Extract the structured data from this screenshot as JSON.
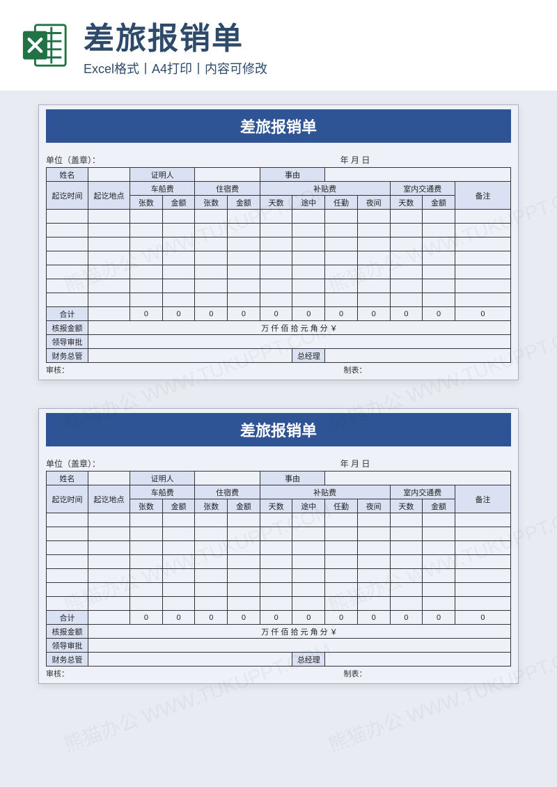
{
  "header": {
    "title": "差旅报销单",
    "subtitle": "Excel格式丨A4打印丨内容可修改"
  },
  "colors": {
    "page_bg": "#e8ecf2",
    "header_bg": "#ffffff",
    "sheet_bg": "#eef1f8",
    "title_bar_bg": "#2f5496",
    "title_bar_fg": "#ffffff",
    "th_bg": "#d9e1f2",
    "border": "#333333",
    "title_text": "#2d4a6b",
    "excel_green": "#217346"
  },
  "form": {
    "title": "差旅报销单",
    "unit_label": "单位（盖章）：",
    "date_label": "年   月    日",
    "row1": {
      "name": "姓名",
      "witness": "证明人",
      "reason": "事由"
    },
    "group_row": {
      "time": "起讫时间",
      "place": "起讫地点",
      "fare": "车船费",
      "lodging": "住宿费",
      "allowance": "补贴费",
      "local": "室内交通费",
      "remark": "备注"
    },
    "sub_cols": {
      "count": "张数",
      "amount": "金额",
      "days": "天数",
      "途中": "途中",
      "任勤": "任勤",
      "夜间": "夜间"
    },
    "blank_rows": 7,
    "total_label": "合计",
    "totals": [
      "0",
      "0",
      "0",
      "0",
      "0",
      "0",
      "0",
      "0",
      "0",
      "0",
      "0"
    ],
    "amount_label": "核报金额",
    "amount_words": "万 仟 佰   拾 元 角 分  ￥",
    "approve_label": "领导审批",
    "fin_label": "财务总管",
    "gm_label": "总经理",
    "reviewer_label": "审核：",
    "maker_label": "制表："
  },
  "watermark": "熊猫办公 WWW.TUKUPPT.COM"
}
